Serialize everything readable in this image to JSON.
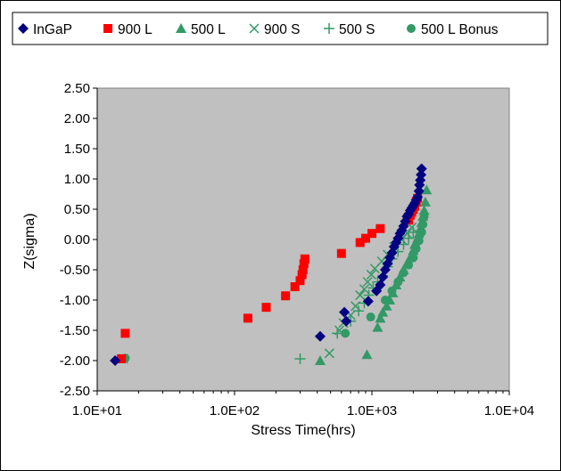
{
  "chart_data": {
    "type": "scatter",
    "xlabel": "Stress Time(hrs)",
    "ylabel": "Z(sigma)",
    "x_scale": "log",
    "xlim": [
      10,
      10000
    ],
    "ylim": [
      -2.5,
      2.5
    ],
    "x_ticks": [
      10,
      100,
      1000,
      10000
    ],
    "x_tick_labels": [
      "1.0E+01",
      "1.0E+02",
      "1.0E+03",
      "1.0E+04"
    ],
    "y_ticks": [
      -2.5,
      -2,
      -1.5,
      -1,
      -0.5,
      0,
      0.5,
      1,
      1.5,
      2,
      2.5
    ],
    "y_tick_labels": [
      "-2.50",
      "-2.00",
      "-1.50",
      "-1.00",
      "-0.50",
      "0.00",
      "0.50",
      "1.00",
      "1.50",
      "2.00",
      "2.50"
    ],
    "grid": false,
    "plot_background": "#c0c0c0",
    "legend_position": "top",
    "series": [
      {
        "name": "InGaP",
        "marker": "diamond",
        "color": "#000080",
        "points": [
          [
            13.5,
            -2.0
          ],
          [
            420,
            -1.6
          ],
          [
            630,
            -1.2
          ],
          [
            650,
            -1.35
          ],
          [
            940,
            -1.02
          ],
          [
            1080,
            -0.85
          ],
          [
            1150,
            -0.75
          ],
          [
            1200,
            -0.62
          ],
          [
            1250,
            -0.5
          ],
          [
            1300,
            -0.4
          ],
          [
            1350,
            -0.3
          ],
          [
            1400,
            -0.22
          ],
          [
            1450,
            -0.12
          ],
          [
            1500,
            -0.05
          ],
          [
            1550,
            0.02
          ],
          [
            1600,
            0.1
          ],
          [
            1650,
            0.15
          ],
          [
            1700,
            0.22
          ],
          [
            1750,
            0.3
          ],
          [
            1800,
            0.38
          ],
          [
            1850,
            0.42
          ],
          [
            1900,
            0.48
          ],
          [
            1950,
            0.52
          ],
          [
            2000,
            0.56
          ],
          [
            2050,
            0.6
          ],
          [
            2100,
            0.65
          ],
          [
            2150,
            0.7
          ],
          [
            2200,
            0.8
          ],
          [
            2220,
            0.9
          ],
          [
            2250,
            0.98
          ],
          [
            2280,
            1.07
          ],
          [
            2300,
            1.17
          ]
        ]
      },
      {
        "name": "900 L",
        "marker": "square",
        "color": "#ff0000",
        "points": [
          [
            15,
            -1.97
          ],
          [
            16,
            -1.55
          ],
          [
            125,
            -1.3
          ],
          [
            170,
            -1.12
          ],
          [
            235,
            -0.93
          ],
          [
            275,
            -0.78
          ],
          [
            300,
            -0.68
          ],
          [
            310,
            -0.58
          ],
          [
            315,
            -0.5
          ],
          [
            320,
            -0.4
          ],
          [
            325,
            -0.32
          ],
          [
            600,
            -0.23
          ],
          [
            820,
            -0.05
          ],
          [
            900,
            0.02
          ],
          [
            1000,
            0.1
          ],
          [
            1150,
            0.18
          ],
          [
            1850,
            0.32
          ],
          [
            1900,
            0.4
          ],
          [
            1950,
            0.45
          ],
          [
            2000,
            0.5
          ],
          [
            2050,
            0.55
          ],
          [
            2100,
            0.62
          ],
          [
            2150,
            0.68
          ]
        ]
      },
      {
        "name": "500 L",
        "marker": "triangle",
        "color": "#339966",
        "points": [
          [
            420,
            -2.0
          ],
          [
            920,
            -1.9
          ],
          [
            1100,
            -1.45
          ],
          [
            1150,
            -1.3
          ],
          [
            1200,
            -1.2
          ],
          [
            1280,
            -1.1
          ],
          [
            1350,
            -1.0
          ],
          [
            1420,
            -0.88
          ],
          [
            1500,
            -0.75
          ],
          [
            1600,
            -0.62
          ],
          [
            1700,
            -0.5
          ],
          [
            1800,
            -0.4
          ],
          [
            1900,
            -0.3
          ],
          [
            2000,
            -0.18
          ],
          [
            2050,
            -0.08
          ],
          [
            2150,
            0.02
          ],
          [
            2200,
            0.1
          ],
          [
            2250,
            0.18
          ],
          [
            2300,
            0.28
          ],
          [
            2350,
            0.38
          ],
          [
            2400,
            0.48
          ],
          [
            2450,
            0.62
          ],
          [
            2500,
            0.82
          ]
        ]
      },
      {
        "name": "900 S",
        "marker": "x",
        "color": "#339966",
        "points": [
          [
            15.5,
            -1.97
          ],
          [
            490,
            -1.88
          ],
          [
            580,
            -1.5
          ],
          [
            620,
            -1.38
          ],
          [
            700,
            -1.25
          ],
          [
            760,
            -1.1
          ],
          [
            820,
            -0.92
          ],
          [
            880,
            -0.82
          ],
          [
            930,
            -0.7
          ],
          [
            990,
            -0.58
          ],
          [
            1050,
            -0.48
          ],
          [
            1180,
            -0.36
          ],
          [
            1300,
            -0.25
          ],
          [
            1450,
            -0.12
          ],
          [
            1650,
            0.0
          ],
          [
            1800,
            0.1
          ],
          [
            1950,
            0.2
          ]
        ]
      },
      {
        "name": "500 S",
        "marker": "plus",
        "color": "#339966",
        "points": [
          [
            300,
            -1.97
          ],
          [
            560,
            -1.55
          ],
          [
            700,
            -1.35
          ],
          [
            800,
            -1.18
          ],
          [
            880,
            -1.05
          ],
          [
            950,
            -0.92
          ],
          [
            1020,
            -0.8
          ],
          [
            1100,
            -0.7
          ],
          [
            1200,
            -0.6
          ],
          [
            1300,
            -0.45
          ],
          [
            1400,
            -0.32
          ],
          [
            1550,
            -0.2
          ],
          [
            1700,
            -0.08
          ],
          [
            1850,
            0.02
          ],
          [
            2000,
            0.12
          ]
        ]
      },
      {
        "name": "500 L Bonus",
        "marker": "circle",
        "color": "#339966",
        "points": [
          [
            16,
            -1.96
          ],
          [
            640,
            -1.55
          ],
          [
            980,
            -1.28
          ],
          [
            1250,
            -1.0
          ],
          [
            1400,
            -0.85
          ],
          [
            1550,
            -0.7
          ],
          [
            1700,
            -0.55
          ],
          [
            1850,
            -0.42
          ],
          [
            2000,
            -0.3
          ],
          [
            2100,
            -0.15
          ],
          [
            2200,
            -0.02
          ],
          [
            2300,
            0.12
          ],
          [
            2350,
            0.25
          ],
          [
            2400,
            0.38
          ]
        ]
      }
    ]
  }
}
